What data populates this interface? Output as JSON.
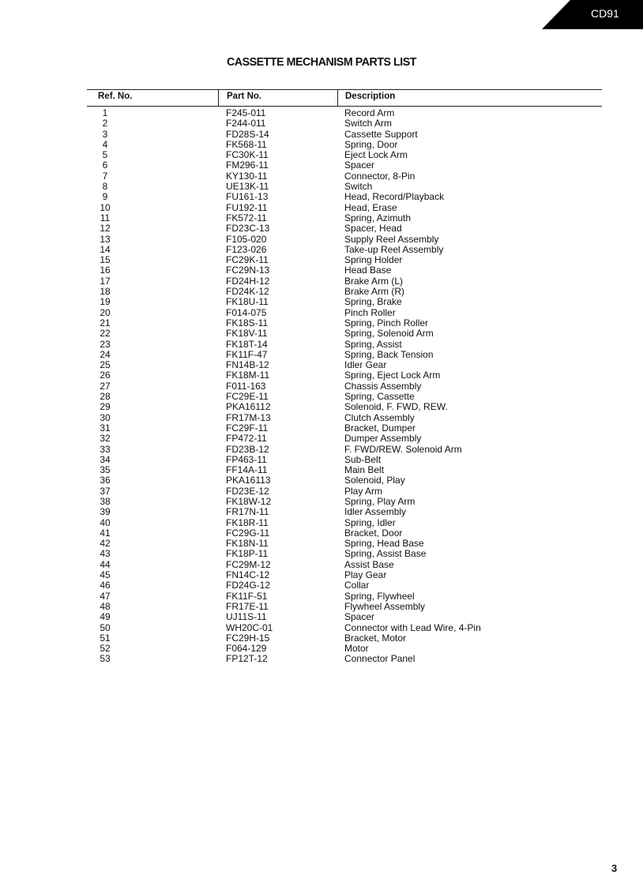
{
  "header_tab": {
    "label": "CD91"
  },
  "title": "CASSETTE MECHANISM PARTS LIST",
  "columns": {
    "ref": "Ref. No.",
    "part": "Part No.",
    "desc": "Description"
  },
  "rows": [
    [
      "1",
      "F245-011",
      "Record Arm"
    ],
    [
      "2",
      "F244-011",
      "Switch Arm"
    ],
    [
      "3",
      "FD28S-14",
      "Cassette Support"
    ],
    [
      "4",
      "FK568-11",
      "Spring, Door"
    ],
    [
      "5",
      "FC30K-11",
      "Eject Lock Arm"
    ],
    [
      "6",
      "FM296-11",
      "Spacer"
    ],
    [
      "7",
      "KY130-11",
      "Connector, 8-Pin"
    ],
    [
      "8",
      "UE13K-11",
      "Switch"
    ],
    [
      "9",
      "FU161-13",
      "Head, Record/Playback"
    ],
    [
      "10",
      "FU192-11",
      "Head, Erase"
    ],
    [
      "11",
      "FK572-11",
      "Spring, Azimuth"
    ],
    [
      "12",
      "FD23C-13",
      "Spacer, Head"
    ],
    [
      "13",
      "F105-020",
      "Supply Reel Assembly"
    ],
    [
      "14",
      "F123-026",
      "Take-up Reel Assembly"
    ],
    [
      "15",
      "FC29K-11",
      "Spring Holder"
    ],
    [
      "16",
      "FC29N-13",
      "Head Base"
    ],
    [
      "17",
      "FD24H-12",
      "Brake Arm (L)"
    ],
    [
      "18",
      "FD24K-12",
      "Brake Arm (R)"
    ],
    [
      "19",
      "FK18U-11",
      "Spring, Brake"
    ],
    [
      "20",
      "F014-075",
      "Pinch Roller"
    ],
    [
      "21",
      "FK18S-11",
      "Spring, Pinch Roller"
    ],
    [
      "22",
      "FK18V-11",
      "Spring, Solenoid Arm"
    ],
    [
      "23",
      "FK18T-14",
      "Spring, Assist"
    ],
    [
      "24",
      "FK11F-47",
      "Spring, Back Tension"
    ],
    [
      "25",
      "FN14B-12",
      "Idler Gear"
    ],
    [
      "26",
      "FK18M-11",
      "Spring, Eject Lock Arm"
    ],
    [
      "27",
      "F011-163",
      "Chassis Assembly"
    ],
    [
      "28",
      "FC29E-11",
      "Spring, Cassette"
    ],
    [
      "29",
      "PKA16112",
      "Solenoid, F. FWD, REW."
    ],
    [
      "30",
      "FR17M-13",
      "Clutch Assembly"
    ],
    [
      "31",
      "FC29F-11",
      "Bracket, Dumper"
    ],
    [
      "32",
      "FP472-11",
      "Dumper Assembly"
    ],
    [
      "33",
      "FD23B-12",
      "F. FWD/REW. Solenoid Arm"
    ],
    [
      "34",
      "FP463-11",
      "Sub-Belt"
    ],
    [
      "35",
      "FF14A-11",
      "Main Belt"
    ],
    [
      "36",
      "PKA16113",
      "Solenoid, Play"
    ],
    [
      "37",
      "FD23E-12",
      "Play Arm"
    ],
    [
      "38",
      "FK18W-12",
      "Spring, Play Arm"
    ],
    [
      "39",
      "FR17N-11",
      "Idler Assembly"
    ],
    [
      "40",
      "FK18R-11",
      "Spring, Idler"
    ],
    [
      "41",
      "FC29G-11",
      "Bracket, Door"
    ],
    [
      "42",
      "FK18N-11",
      "Spring, Head Base"
    ],
    [
      "43",
      "FK18P-11",
      "Spring, Assist Base"
    ],
    [
      "44",
      "FC29M-12",
      "Assist Base"
    ],
    [
      "45",
      "FN14C-12",
      "Play Gear"
    ],
    [
      "46",
      "FD24G-12",
      "Collar"
    ],
    [
      "47",
      "FK11F-51",
      "Spring, Flywheel"
    ],
    [
      "48",
      "FR17E-11",
      "Flywheel Assembly"
    ],
    [
      "49",
      "UJ11S-11",
      "Spacer"
    ],
    [
      "50",
      "WH20C-01",
      "Connector with Lead Wire, 4-Pin"
    ],
    [
      "51",
      "FC29H-15",
      "Bracket, Motor"
    ],
    [
      "52",
      "F064-129",
      "Motor"
    ],
    [
      "53",
      "FP12T-12",
      "Connector Panel"
    ]
  ],
  "page_number": "3"
}
